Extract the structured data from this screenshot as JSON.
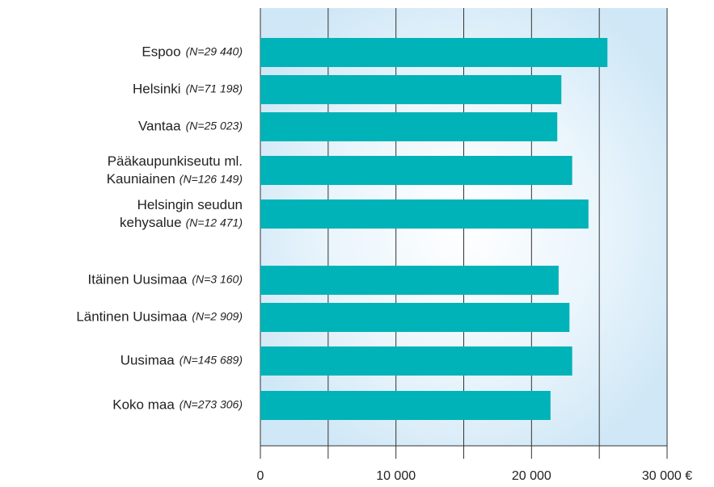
{
  "chart_data": {
    "type": "bar",
    "orientation": "horizontal",
    "categories": [
      "Espoo",
      "Helsinki",
      "Vantaa",
      "Pääkaupunkiseutu ml. Kauniainen",
      "Helsingin seudun kehysalue",
      "Itäinen Uusimaa",
      "Läntinen Uusimaa",
      "Uusimaa",
      "Koko maa"
    ],
    "category_notes": [
      "(N=29 440)",
      "(N=71 198)",
      "(N=25 023)",
      "(N=126 149)",
      "(N=12 471)",
      "(N=3 160)",
      "(N=2 909)",
      "(N=145 689)",
      "(N=273 306)"
    ],
    "values": [
      25600,
      22200,
      21900,
      23000,
      24200,
      22000,
      22800,
      23000,
      21400
    ],
    "color": "#00b3b8",
    "xlim": [
      0,
      30000
    ],
    "xticks": [
      0,
      {
        "value": 10000,
        "label": "10 000"
      },
      {
        "value": 20000,
        "label": "20 000"
      },
      {
        "value": 30000,
        "label": "30 000 €"
      }
    ],
    "minor_xticks": [
      5000,
      15000,
      25000
    ],
    "grid": true
  }
}
